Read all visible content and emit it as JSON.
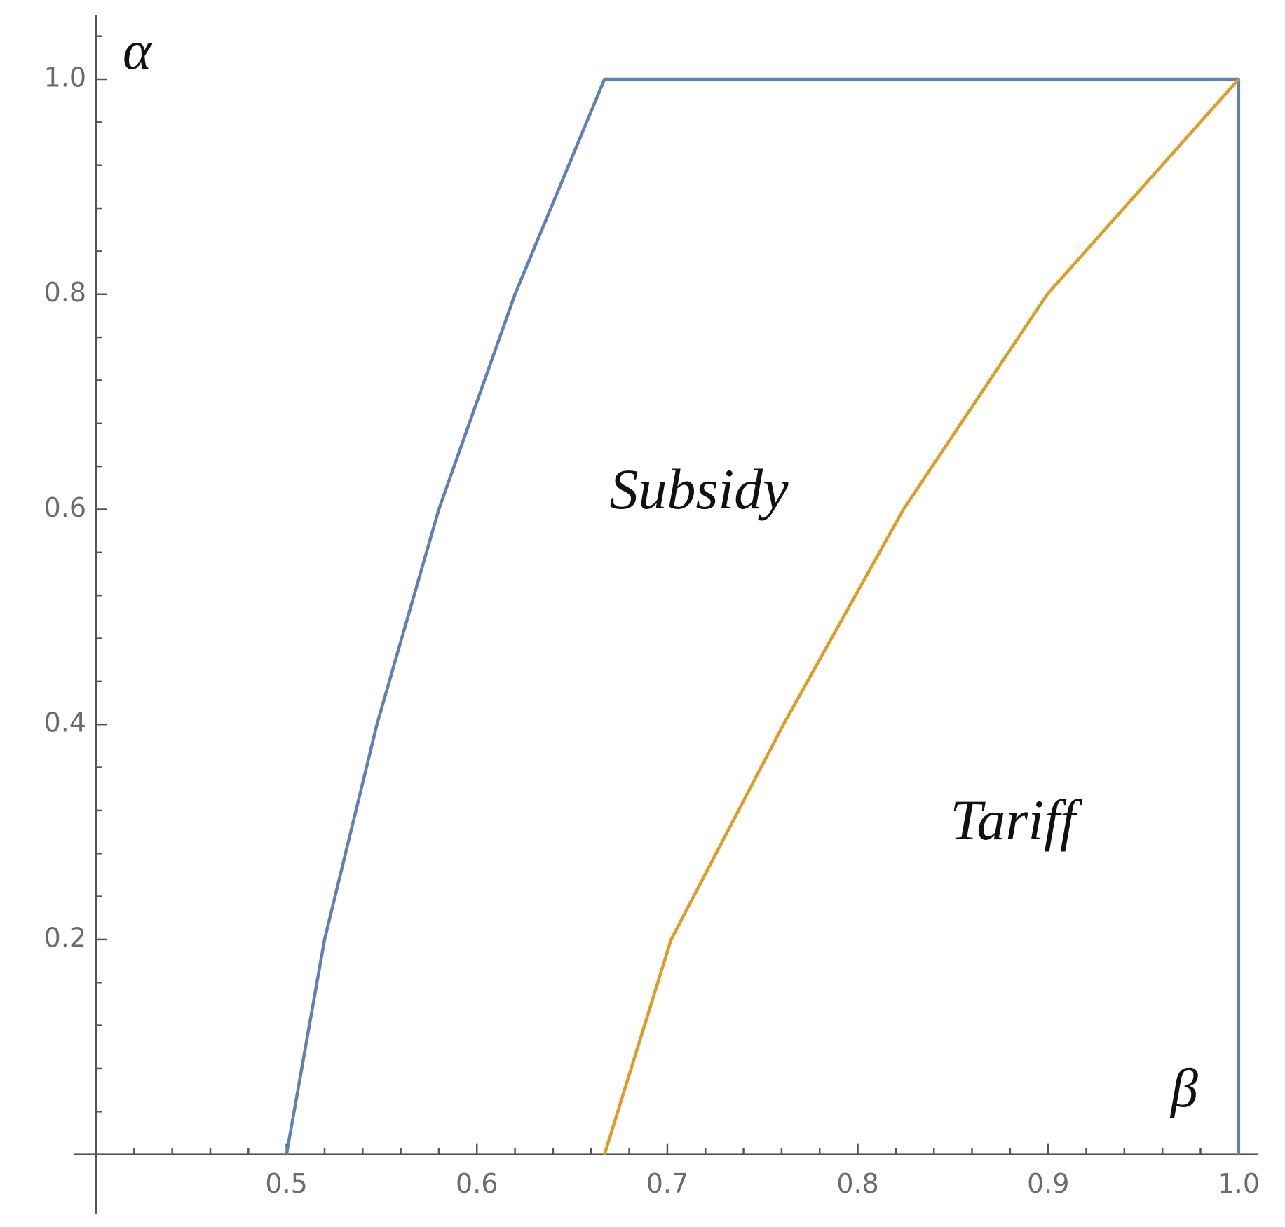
{
  "chart_data": {
    "type": "line",
    "xlabel": "β",
    "ylabel": "α",
    "annotations": [
      "Subsidy",
      "Tariff"
    ],
    "series": [
      {
        "color": "#5e81b5",
        "x": [
          0.5,
          0.52,
          0.5475,
          0.58,
          0.62,
          0.667,
          1.0,
          1.0
        ],
        "values": [
          0,
          0.2,
          0.4,
          0.6,
          0.8,
          1,
          1,
          0
        ]
      },
      {
        "color": "#e19c24",
        "x": [
          0.667,
          0.702,
          0.761,
          0.824,
          0.8995,
          1.0
        ],
        "values": [
          0,
          0.2,
          0.4,
          0.6,
          0.8,
          1
        ]
      }
    ],
    "xlim": [
      0.4,
      1.01
    ],
    "ylim": [
      -0.055,
      1.06
    ],
    "xticks": [
      0.5,
      0.6,
      0.7,
      0.8,
      0.9,
      {
        "value": 1,
        "label": "1.0"
      }
    ],
    "yticks": [
      0.2,
      0.4,
      0.6,
      0.8,
      {
        "value": 1,
        "label": "1.0"
      }
    ],
    "xminorticks": [
      0.42,
      0.44,
      0.46,
      0.48,
      0.52,
      0.54,
      0.56,
      0.58,
      0.62,
      0.64,
      0.66,
      0.68,
      0.72,
      0.74,
      0.76,
      0.78,
      0.82,
      0.84,
      0.86,
      0.88,
      0.92,
      0.94,
      0.96,
      0.98
    ],
    "yminorticks": [
      0.04,
      0.08,
      0.12,
      0.16,
      0.24,
      0.28,
      0.32,
      0.36,
      0.44,
      0.48,
      0.52,
      0.56,
      0.64,
      0.68,
      0.72,
      0.76,
      0.84,
      0.88,
      0.92,
      0.96,
      1.04
    ]
  }
}
